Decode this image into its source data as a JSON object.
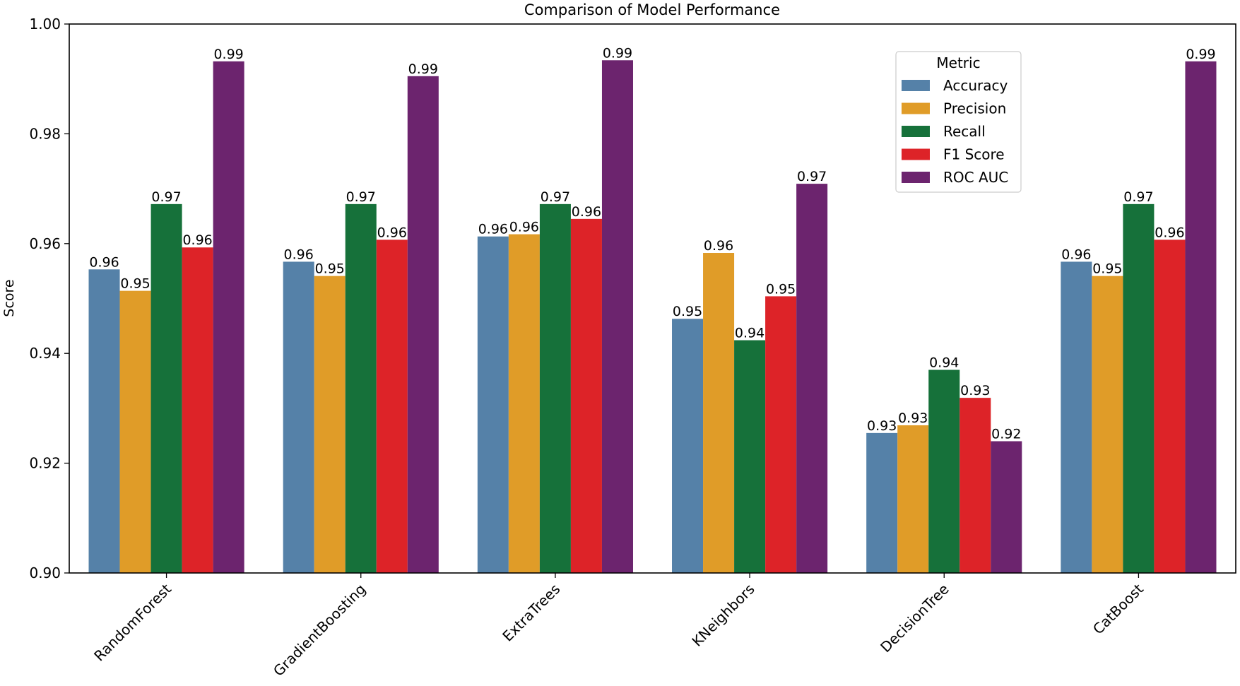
{
  "chart_data": {
    "type": "bar",
    "title": "Comparison of Model Performance",
    "xlabel": "",
    "ylabel": "Score",
    "ylim": [
      0.9,
      1.0
    ],
    "yticks": [
      "0.90",
      "0.92",
      "0.94",
      "0.96",
      "0.98",
      "1.00"
    ],
    "grid": false,
    "legend": {
      "title": "Metric",
      "placement": "top-right"
    },
    "categories": [
      "RandomForest",
      "GradientBoosting",
      "ExtraTrees",
      "KNeighbors",
      "DecisionTree",
      "CatBoost"
    ],
    "series": [
      {
        "name": "Accuracy",
        "color": "#5581a8",
        "values": [
          0.9553,
          0.9567,
          0.9613,
          0.9463,
          0.9255,
          0.9567
        ],
        "labels": [
          "0.96",
          "0.96",
          "0.96",
          "0.95",
          "0.93",
          "0.96"
        ]
      },
      {
        "name": "Precision",
        "color": "#e09c28",
        "values": [
          0.9514,
          0.9541,
          0.9617,
          0.9583,
          0.9269,
          0.9541
        ],
        "labels": [
          "0.95",
          "0.95",
          "0.96",
          "0.96",
          "0.93",
          "0.95"
        ]
      },
      {
        "name": "Recall",
        "color": "#16713a",
        "values": [
          0.9672,
          0.9672,
          0.9672,
          0.9424,
          0.937,
          0.9672
        ],
        "labels": [
          "0.97",
          "0.97",
          "0.97",
          "0.94",
          "0.94",
          "0.97"
        ]
      },
      {
        "name": "F1 Score",
        "color": "#dd2328",
        "values": [
          0.9593,
          0.9607,
          0.9645,
          0.9504,
          0.9319,
          0.9607
        ],
        "labels": [
          "0.96",
          "0.96",
          "0.96",
          "0.95",
          "0.93",
          "0.96"
        ]
      },
      {
        "name": "ROC AUC",
        "color": "#6c246e",
        "values": [
          0.9932,
          0.9905,
          0.9934,
          0.9709,
          0.924,
          0.9932
        ],
        "labels": [
          "0.99",
          "0.99",
          "0.99",
          "0.97",
          "0.92",
          "0.99"
        ]
      }
    ]
  }
}
